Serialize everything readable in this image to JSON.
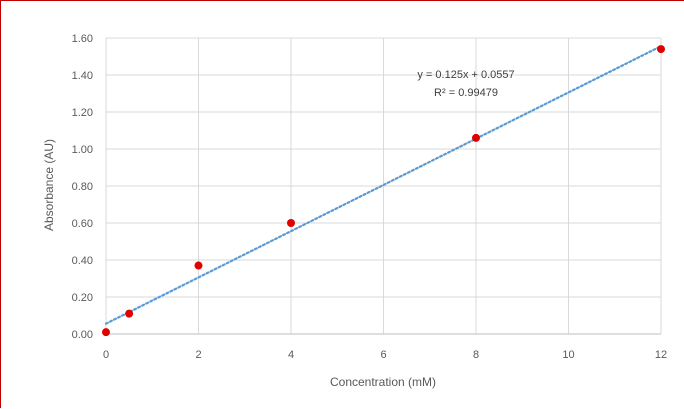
{
  "chart_data": {
    "type": "scatter",
    "xlabel": "Concentration  (mM)",
    "ylabel": "Absorbance (AU)",
    "xlim": [
      0,
      12
    ],
    "ylim": [
      0,
      1.6
    ],
    "x_ticks": [
      0,
      2,
      4,
      6,
      8,
      10,
      12
    ],
    "x_tick_labels": [
      "0",
      "2",
      "4",
      "6",
      "8",
      "10",
      "12"
    ],
    "y_ticks": [
      0,
      0.2,
      0.4,
      0.6,
      0.8,
      1.0,
      1.2,
      1.4,
      1.6
    ],
    "y_tick_labels": [
      "0.00",
      "0.20",
      "0.40",
      "0.60",
      "0.80",
      "1.00",
      "1.20",
      "1.40",
      "1.60"
    ],
    "grid": true,
    "series": [
      {
        "color": "#e00000",
        "x": [
          0,
          0.5,
          2,
          4,
          8,
          12
        ],
        "y": [
          0.01,
          0.11,
          0.37,
          0.6,
          1.06,
          1.54
        ]
      }
    ],
    "trendline": {
      "type": "linear",
      "slope": 0.125,
      "intercept": 0.0557,
      "color": "#5b9bd5",
      "style": "dotted",
      "equation_label": "y = 0.125x + 0.0557",
      "r2_label": "R² = 0.99479"
    }
  }
}
